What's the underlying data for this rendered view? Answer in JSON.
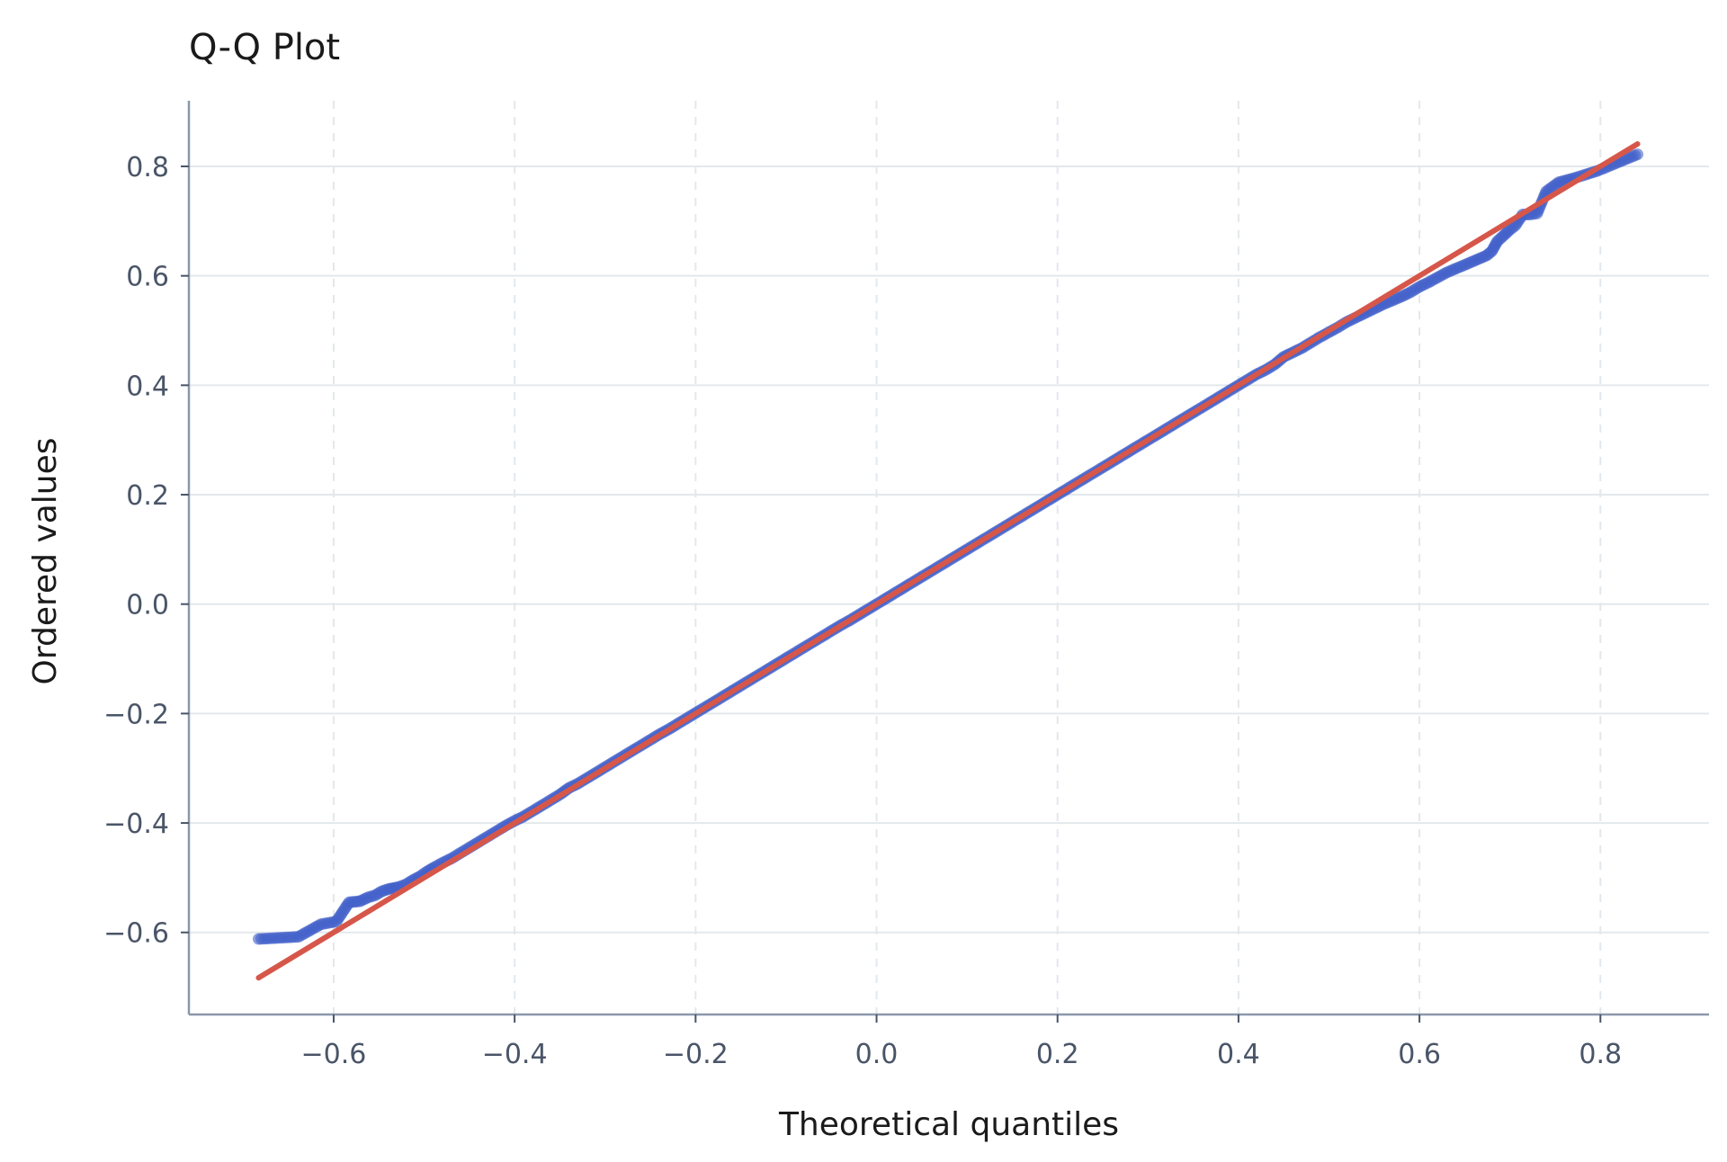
{
  "chart_data": {
    "type": "scatter",
    "title": "Q-Q Plot",
    "xlabel": "Theoretical quantiles",
    "ylabel": "Ordered values",
    "xlim": [
      -0.76,
      0.92
    ],
    "ylim": [
      -0.75,
      0.92
    ],
    "x_ticks": [
      -0.6,
      -0.4,
      -0.2,
      0.0,
      0.2,
      0.4,
      0.6,
      0.8
    ],
    "y_ticks": [
      -0.6,
      -0.4,
      -0.2,
      0.0,
      0.2,
      0.4,
      0.6,
      0.8
    ],
    "x_tick_labels": [
      "−0.6",
      "−0.4",
      "−0.2",
      "0.0",
      "0.2",
      "0.4",
      "0.6",
      "0.8"
    ],
    "y_tick_labels": [
      "−0.6",
      "−0.4",
      "−0.2",
      "0.0",
      "0.2",
      "0.4",
      "0.6",
      "0.8"
    ],
    "grid": true,
    "legend": "none",
    "colors": {
      "points": "#4361c9",
      "fit_line": "#d6574a"
    },
    "series": [
      {
        "type": "scatter",
        "points": [
          [
            -0.683,
            -0.612
          ],
          [
            -0.639,
            -0.608
          ],
          [
            -0.614,
            -0.585
          ],
          [
            -0.597,
            -0.58
          ],
          [
            -0.583,
            -0.545
          ],
          [
            -0.571,
            -0.543
          ],
          [
            -0.562,
            -0.536
          ],
          [
            -0.554,
            -0.532
          ],
          [
            -0.547,
            -0.525
          ],
          [
            -0.54,
            -0.521
          ],
          [
            -0.534,
            -0.519
          ],
          [
            -0.528,
            -0.517
          ],
          [
            -0.52,
            -0.512
          ],
          [
            -0.513,
            -0.505
          ],
          [
            -0.505,
            -0.498
          ],
          [
            -0.498,
            -0.49
          ],
          [
            -0.49,
            -0.482
          ],
          [
            -0.48,
            -0.473
          ],
          [
            -0.47,
            -0.465
          ],
          [
            -0.46,
            -0.455
          ],
          [
            -0.45,
            -0.445
          ],
          [
            -0.44,
            -0.435
          ],
          [
            -0.43,
            -0.425
          ],
          [
            -0.42,
            -0.415
          ],
          [
            -0.41,
            -0.405
          ],
          [
            -0.4,
            -0.396
          ],
          [
            -0.39,
            -0.388
          ],
          [
            -0.38,
            -0.378
          ],
          [
            -0.37,
            -0.368
          ],
          [
            -0.36,
            -0.358
          ],
          [
            -0.35,
            -0.348
          ],
          [
            -0.34,
            -0.336
          ],
          [
            -0.33,
            -0.328
          ],
          [
            -0.32,
            -0.318
          ],
          [
            -0.31,
            -0.308
          ],
          [
            -0.3,
            -0.298
          ],
          [
            -0.29,
            -0.288
          ],
          [
            -0.28,
            -0.278
          ],
          [
            -0.27,
            -0.268
          ],
          [
            -0.26,
            -0.258
          ],
          [
            -0.25,
            -0.248
          ],
          [
            -0.24,
            -0.238
          ],
          [
            -0.23,
            -0.229
          ],
          [
            -0.22,
            -0.219
          ],
          [
            -0.21,
            -0.209
          ],
          [
            -0.2,
            -0.199
          ],
          [
            -0.19,
            -0.189
          ],
          [
            -0.18,
            -0.179
          ],
          [
            -0.17,
            -0.169
          ],
          [
            -0.16,
            -0.159
          ],
          [
            -0.15,
            -0.149
          ],
          [
            -0.14,
            -0.139
          ],
          [
            -0.13,
            -0.129
          ],
          [
            -0.12,
            -0.119
          ],
          [
            -0.11,
            -0.109
          ],
          [
            -0.1,
            -0.099
          ],
          [
            -0.09,
            -0.089
          ],
          [
            -0.08,
            -0.079
          ],
          [
            -0.07,
            -0.069
          ],
          [
            -0.06,
            -0.059
          ],
          [
            -0.05,
            -0.049
          ],
          [
            -0.04,
            -0.039
          ],
          [
            -0.03,
            -0.03
          ],
          [
            -0.02,
            -0.02
          ],
          [
            -0.01,
            -0.01
          ],
          [
            0.0,
            0.0
          ],
          [
            0.01,
            0.01
          ],
          [
            0.02,
            0.02
          ],
          [
            0.03,
            0.03
          ],
          [
            0.04,
            0.04
          ],
          [
            0.05,
            0.05
          ],
          [
            0.06,
            0.06
          ],
          [
            0.07,
            0.07
          ],
          [
            0.08,
            0.08
          ],
          [
            0.09,
            0.09
          ],
          [
            0.1,
            0.1
          ],
          [
            0.11,
            0.11
          ],
          [
            0.12,
            0.12
          ],
          [
            0.13,
            0.13
          ],
          [
            0.14,
            0.14
          ],
          [
            0.15,
            0.15
          ],
          [
            0.16,
            0.16
          ],
          [
            0.17,
            0.17
          ],
          [
            0.18,
            0.18
          ],
          [
            0.19,
            0.19
          ],
          [
            0.2,
            0.2
          ],
          [
            0.21,
            0.21
          ],
          [
            0.22,
            0.22
          ],
          [
            0.23,
            0.23
          ],
          [
            0.24,
            0.24
          ],
          [
            0.25,
            0.25
          ],
          [
            0.26,
            0.26
          ],
          [
            0.27,
            0.27
          ],
          [
            0.28,
            0.28
          ],
          [
            0.29,
            0.29
          ],
          [
            0.3,
            0.3
          ],
          [
            0.31,
            0.31
          ],
          [
            0.32,
            0.32
          ],
          [
            0.33,
            0.33
          ],
          [
            0.34,
            0.34
          ],
          [
            0.35,
            0.35
          ],
          [
            0.36,
            0.36
          ],
          [
            0.37,
            0.37
          ],
          [
            0.38,
            0.38
          ],
          [
            0.39,
            0.39
          ],
          [
            0.4,
            0.4
          ],
          [
            0.41,
            0.41
          ],
          [
            0.42,
            0.42
          ],
          [
            0.43,
            0.428
          ],
          [
            0.44,
            0.438
          ],
          [
            0.45,
            0.452
          ],
          [
            0.46,
            0.46
          ],
          [
            0.47,
            0.468
          ],
          [
            0.48,
            0.478
          ],
          [
            0.49,
            0.488
          ],
          [
            0.5,
            0.497
          ],
          [
            0.51,
            0.506
          ],
          [
            0.52,
            0.516
          ],
          [
            0.53,
            0.524
          ],
          [
            0.54,
            0.532
          ],
          [
            0.55,
            0.54
          ],
          [
            0.56,
            0.548
          ],
          [
            0.57,
            0.555
          ],
          [
            0.58,
            0.562
          ],
          [
            0.59,
            0.57
          ],
          [
            0.6,
            0.58
          ],
          [
            0.61,
            0.588
          ],
          [
            0.62,
            0.597
          ],
          [
            0.63,
            0.606
          ],
          [
            0.64,
            0.613
          ],
          [
            0.65,
            0.62
          ],
          [
            0.66,
            0.627
          ],
          [
            0.667,
            0.632
          ],
          [
            0.674,
            0.637
          ],
          [
            0.68,
            0.645
          ],
          [
            0.686,
            0.663
          ],
          [
            0.692,
            0.672
          ],
          [
            0.699,
            0.683
          ],
          [
            0.706,
            0.692
          ],
          [
            0.714,
            0.712
          ],
          [
            0.722,
            0.712
          ],
          [
            0.73,
            0.714
          ],
          [
            0.74,
            0.754
          ],
          [
            0.754,
            0.771
          ],
          [
            0.772,
            0.779
          ],
          [
            0.797,
            0.792
          ],
          [
            0.841,
            0.822
          ]
        ]
      },
      {
        "type": "line",
        "points": [
          [
            -0.683,
            -0.683
          ],
          [
            0.841,
            0.841
          ]
        ]
      }
    ]
  }
}
